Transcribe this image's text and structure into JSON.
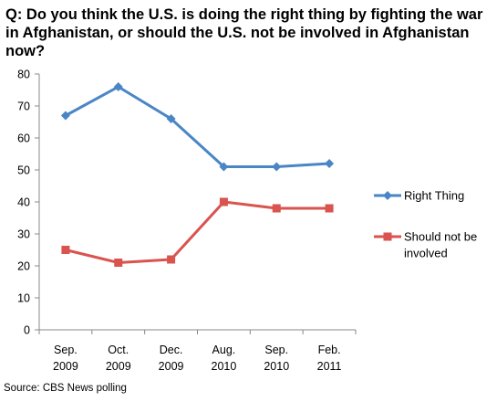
{
  "title": "Q: Do you think the U.S. is doing the right thing by fighting the war in Afghanistan, or should the U.S. not be involved in Afghanistan now?",
  "source": "Source: CBS News polling",
  "chart_data": {
    "type": "line",
    "title": "Q: Do you think the U.S. is doing the right thing by fighting the war in Afghanistan, or should the U.S. not be involved in Afghanistan now?",
    "categories": [
      [
        "Sep.",
        "2009"
      ],
      [
        "Oct.",
        "2009"
      ],
      [
        "Dec.",
        "2009"
      ],
      [
        "Aug.",
        "2010"
      ],
      [
        "Sep.",
        "2010"
      ],
      [
        "Feb.",
        "2011"
      ]
    ],
    "ylim": [
      0,
      80
    ],
    "yticks": [
      0,
      10,
      20,
      30,
      40,
      50,
      60,
      70,
      80
    ],
    "grid": false,
    "legend": "right",
    "series": [
      {
        "name_lines": [
          "Right Thing"
        ],
        "values": [
          67,
          76,
          66,
          51,
          51,
          52
        ],
        "color": "#4a86c5",
        "marker": "diamond"
      },
      {
        "name_lines": [
          "Should not be",
          "involved"
        ],
        "values": [
          25,
          21,
          22,
          40,
          38,
          38
        ],
        "color": "#d9534f",
        "marker": "square"
      }
    ]
  }
}
